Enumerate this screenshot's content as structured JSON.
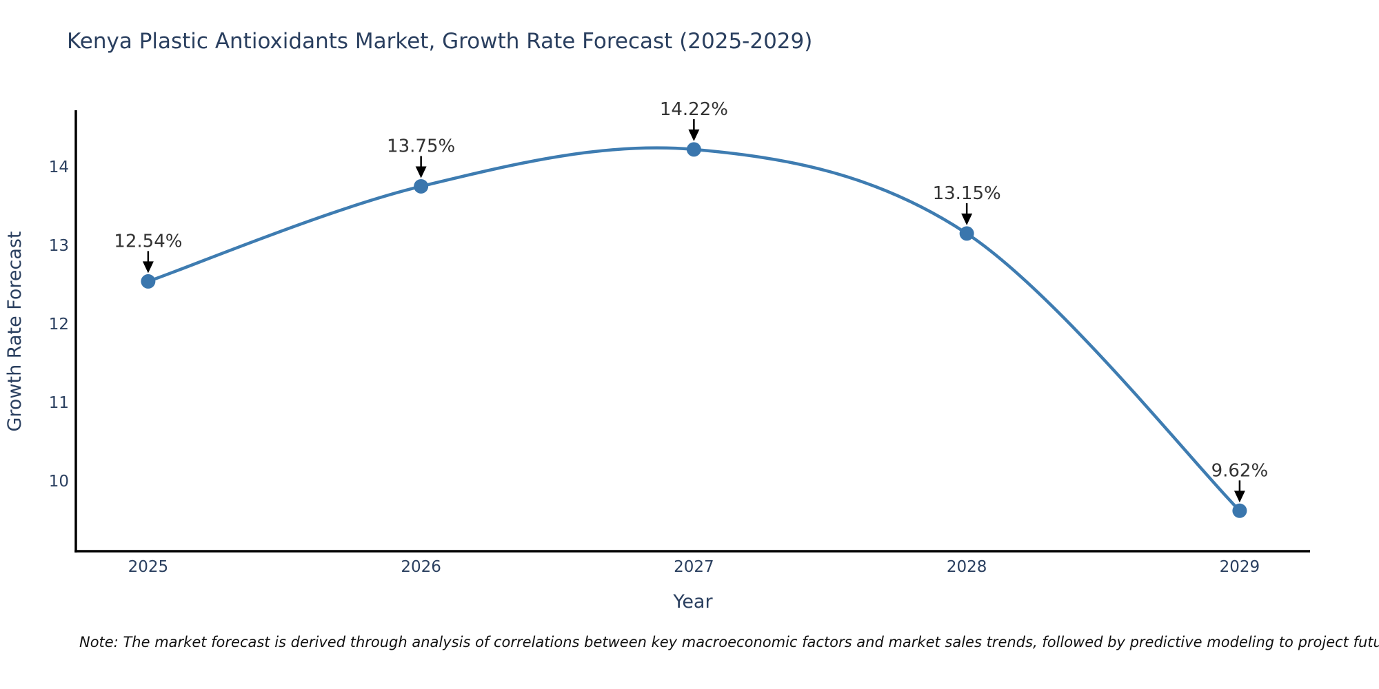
{
  "chart_data": {
    "type": "line",
    "title": "Kenya Plastic Antioxidants Market, Growth Rate Forecast (2025-2029)",
    "xlabel": "Year",
    "ylabel": "Growth Rate Forecast",
    "x": [
      2025,
      2026,
      2027,
      2028,
      2029
    ],
    "y": [
      12.54,
      13.75,
      14.22,
      13.15,
      9.62
    ],
    "point_labels": [
      "12.54%",
      "13.75%",
      "14.22%",
      "13.15%",
      "9.62%"
    ],
    "xticks": [
      2025,
      2026,
      2027,
      2028,
      2029
    ],
    "yticks": [
      10,
      11,
      12,
      13,
      14
    ],
    "xlim": [
      2024.735,
      2029.258
    ],
    "ylim": [
      9.105,
      14.719
    ],
    "grid": false,
    "legend": "none",
    "line_shape": "spline",
    "line_color": "#3e7cb1",
    "marker_color": "#3a76ad",
    "axis_color": "#000000",
    "title_color": "#2a3f5f",
    "tick_color": "#2a3f5f",
    "annotation_color": "#333333",
    "arrow_color": "#000000",
    "note": "Note: The market forecast is derived through analysis of correlations between key macroeconomic factors and market sales trends, followed by predictive modeling to project future sales"
  }
}
